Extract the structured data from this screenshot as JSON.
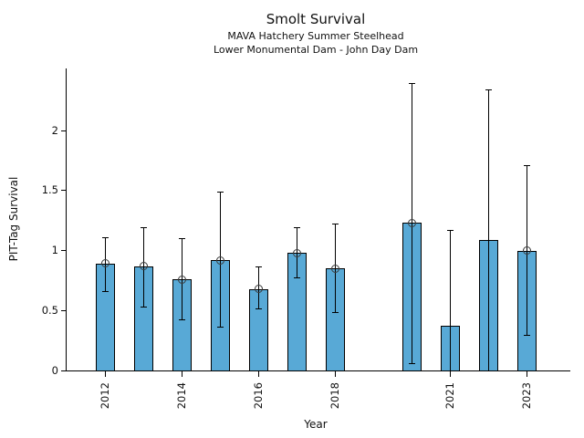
{
  "chart_data": {
    "type": "bar",
    "title": "Smolt Survival",
    "subtitle1": "MAVA Hatchery Summer Steelhead",
    "subtitle2": "Lower Monumental Dam - John Day Dam",
    "xlabel": "Year",
    "ylabel": "PIT-Tag Survival",
    "ylim": [
      0,
      2.52
    ],
    "xlim": [
      2011,
      2024.1
    ],
    "grid": false,
    "legend": "none",
    "bar_color": "#58a9d6",
    "bar_edge_color": "#000000",
    "error_color": "#000000",
    "marker_style": "open-circle",
    "yticks": [
      0,
      0.5,
      1,
      1.5,
      2
    ],
    "ytick_labels": [
      "0",
      "0.5",
      "1",
      "1.5",
      "2"
    ],
    "xticks": [
      2012,
      2014,
      2016,
      2018,
      2021,
      2023
    ],
    "xtick_labels": [
      "2012",
      "2014",
      "2016",
      "2018",
      "2021",
      "2023"
    ],
    "series": [
      {
        "year": 2012,
        "value": 0.89,
        "err_lo": 0.66,
        "err_hi": 1.11,
        "marker": true
      },
      {
        "year": 2013,
        "value": 0.87,
        "err_lo": 0.53,
        "err_hi": 1.19,
        "marker": true
      },
      {
        "year": 2014,
        "value": 0.76,
        "err_lo": 0.42,
        "err_hi": 1.1,
        "marker": true
      },
      {
        "year": 2015,
        "value": 0.92,
        "err_lo": 0.36,
        "err_hi": 1.49,
        "marker": true
      },
      {
        "year": 2016,
        "value": 0.68,
        "err_lo": 0.51,
        "err_hi": 0.86,
        "marker": true
      },
      {
        "year": 2017,
        "value": 0.98,
        "err_lo": 0.77,
        "err_hi": 1.19,
        "marker": true
      },
      {
        "year": 2018,
        "value": 0.85,
        "err_lo": 0.48,
        "err_hi": 1.22,
        "marker": true
      },
      {
        "year": 2020,
        "value": 1.23,
        "err_lo": 0.06,
        "err_hi": 2.39,
        "marker": true
      },
      {
        "year": 2021,
        "value": 0.37,
        "err_lo": 0.0,
        "err_hi": 1.17,
        "marker": false
      },
      {
        "year": 2022,
        "value": 1.09,
        "err_lo": 0.0,
        "err_hi": 2.34,
        "marker": false
      },
      {
        "year": 2023,
        "value": 1.0,
        "err_lo": 0.29,
        "err_hi": 1.71,
        "marker": true
      }
    ]
  }
}
